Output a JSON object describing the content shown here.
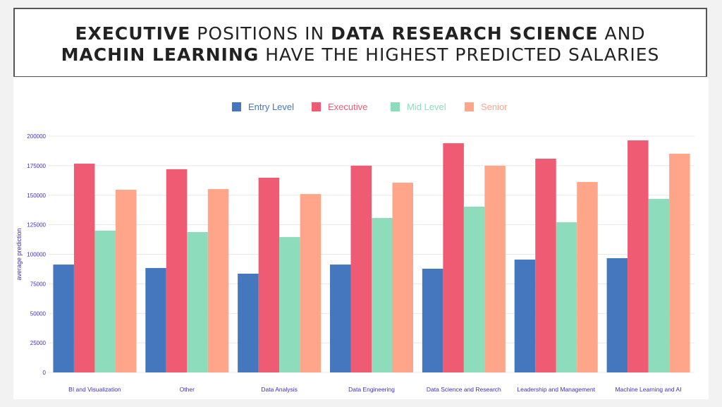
{
  "title": {
    "line1": [
      {
        "text": "EXECUTIVE",
        "bold": true
      },
      {
        "text": " POSITIONS IN ",
        "bold": false
      },
      {
        "text": "DATA RESEARCH SCIENCE",
        "bold": true
      },
      {
        "text": " AND",
        "bold": false
      }
    ],
    "line2": [
      {
        "text": "MACHIN LEARNING",
        "bold": true
      },
      {
        "text": " HAVE THE HIGHEST PREDICTED SALARIES",
        "bold": false
      }
    ]
  },
  "chart_data": {
    "type": "bar",
    "title": "EXECUTIVE POSITIONS IN DATA RESEARCH SCIENCE AND MACHIN LEARNING HAVE THE HIGHEST PREDICTED SALARIES",
    "xlabel": "",
    "ylabel": "average prediction",
    "ylim": [
      0,
      200000
    ],
    "yticks": [
      0,
      25000,
      50000,
      75000,
      100000,
      125000,
      150000,
      175000,
      200000
    ],
    "grid": true,
    "legend_position": "top",
    "categories": [
      "BI and Visualization",
      "Other",
      "Data Analysis",
      "Data Engineering",
      "Data Science and Research",
      "Leadership and Management",
      "Machine Learning and AI"
    ],
    "series": [
      {
        "name": "Entry Level",
        "color": "#4477bd",
        "values": [
          91300,
          88400,
          83600,
          91300,
          87800,
          95500,
          96700
        ]
      },
      {
        "name": "Executive",
        "color": "#ef5b73",
        "values": [
          176700,
          172000,
          164800,
          175000,
          194000,
          180900,
          196400
        ]
      },
      {
        "name": "Mid Level",
        "color": "#8ddcbc",
        "values": [
          120000,
          118800,
          114600,
          130700,
          140300,
          127100,
          146900
        ]
      },
      {
        "name": "Senior",
        "color": "#ffa58a",
        "values": [
          154600,
          155200,
          151000,
          160600,
          175000,
          161200,
          185100
        ]
      }
    ]
  },
  "colors": {
    "axis_text": "#3d2ecf",
    "grid": "#e8e8e8"
  }
}
